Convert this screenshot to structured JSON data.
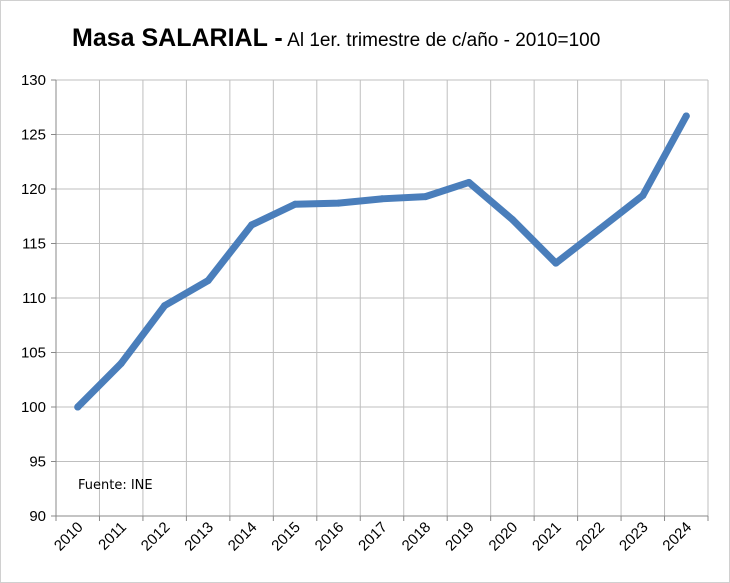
{
  "chart_data": {
    "type": "line",
    "title": "Masa SALARIAL -",
    "subtitle": "Al 1er. trimestre de c/año - 2010=100",
    "xlabel": "",
    "ylabel": "",
    "categories": [
      "2010",
      "2011",
      "2012",
      "2013",
      "2014",
      "2015",
      "2016",
      "2017",
      "2018",
      "2019",
      "2020",
      "2021",
      "2022",
      "2023",
      "2024"
    ],
    "series": [
      {
        "values": [
          100.0,
          104.0,
          109.3,
          111.6,
          116.7,
          118.6,
          118.7,
          119.1,
          119.3,
          120.6,
          117.2,
          113.2,
          116.3,
          119.4,
          126.7
        ],
        "color": "#4a7ebb"
      }
    ],
    "ylim": [
      90,
      130
    ],
    "yticks": [
      90,
      95,
      100,
      105,
      110,
      115,
      120,
      125,
      130
    ],
    "grid": true,
    "legend": "none",
    "annotation": "Fuente: INE"
  }
}
